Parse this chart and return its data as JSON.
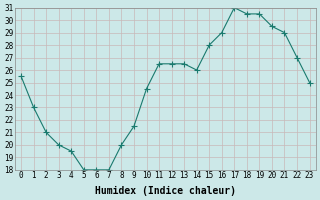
{
  "x": [
    0,
    1,
    2,
    3,
    4,
    5,
    6,
    7,
    8,
    9,
    10,
    11,
    12,
    13,
    14,
    15,
    16,
    17,
    18,
    19,
    20,
    21,
    22,
    23
  ],
  "y": [
    25.5,
    23,
    21,
    20,
    19.5,
    18,
    18,
    18,
    20,
    21.5,
    24.5,
    26.5,
    26.5,
    26.5,
    26,
    28,
    29,
    31,
    30.5,
    30.5,
    29.5,
    29,
    27,
    25
  ],
  "xlabel": "Humidex (Indice chaleur)",
  "ylim": [
    18,
    31
  ],
  "xlim": [
    -0.5,
    23.5
  ],
  "yticks": [
    18,
    19,
    20,
    21,
    22,
    23,
    24,
    25,
    26,
    27,
    28,
    29,
    30,
    31
  ],
  "xtick_labels": [
    "0",
    "1",
    "2",
    "3",
    "4",
    "5",
    "6",
    "7",
    "8",
    "9",
    "10",
    "11",
    "12",
    "13",
    "14",
    "15",
    "16",
    "17",
    "18",
    "19",
    "20",
    "21",
    "22",
    "23"
  ],
  "line_color": "#1a7a6e",
  "marker_color": "#1a7a6e",
  "bg_color": "#cce8e8",
  "grid_color": "#c8b8b8",
  "xlabel_fontsize": 7,
  "tick_fontsize": 5.5,
  "marker_size": 2.0,
  "line_width": 0.8
}
